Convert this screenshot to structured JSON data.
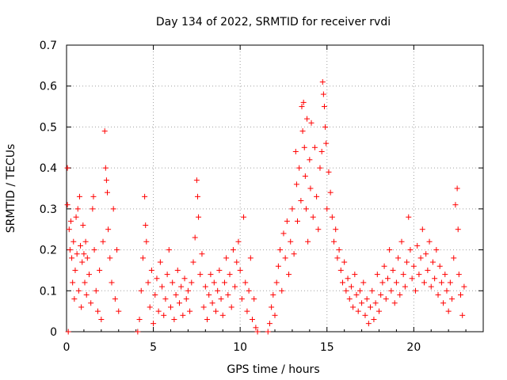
{
  "chart_data": {
    "type": "scatter",
    "title": "Day 134 of 2022, SRMTID for receiver rvdi",
    "xlabel": "GPS time / hours",
    "ylabel": "SRMTID / TECUs",
    "xlim": [
      0,
      24
    ],
    "ylim": [
      0,
      0.7
    ],
    "xticks": [
      0,
      5,
      10,
      15,
      20
    ],
    "xtick_labels": [
      "0",
      "5",
      "10",
      "15",
      "20"
    ],
    "yticks": [
      0,
      0.1,
      0.2,
      0.3,
      0.4,
      0.5,
      0.6,
      0.7
    ],
    "ytick_labels": [
      "0",
      "0.1",
      "0.2",
      "0.3",
      "0.4",
      "0.5",
      "0.6",
      "0.7"
    ],
    "grid": true,
    "marker": "+",
    "marker_color": "#ff0000",
    "series": [
      {
        "name": "SRMTID",
        "points": [
          [
            0.05,
            0.4
          ],
          [
            0.05,
            0.31
          ],
          [
            0.1,
            0.0
          ],
          [
            0.15,
            0.25
          ],
          [
            0.2,
            0.2
          ],
          [
            0.25,
            0.27
          ],
          [
            0.3,
            0.18
          ],
          [
            0.35,
            0.12
          ],
          [
            0.4,
            0.22
          ],
          [
            0.45,
            0.08
          ],
          [
            0.5,
            0.15
          ],
          [
            0.55,
            0.28
          ],
          [
            0.6,
            0.19
          ],
          [
            0.65,
            0.3
          ],
          [
            0.7,
            0.1
          ],
          [
            0.75,
            0.33
          ],
          [
            0.8,
            0.21
          ],
          [
            0.85,
            0.06
          ],
          [
            0.9,
            0.17
          ],
          [
            0.95,
            0.26
          ],
          [
            1.0,
            0.19
          ],
          [
            1.05,
            0.12
          ],
          [
            1.1,
            0.22
          ],
          [
            1.15,
            0.09
          ],
          [
            1.2,
            0.18
          ],
          [
            1.3,
            0.14
          ],
          [
            1.4,
            0.07
          ],
          [
            1.5,
            0.3
          ],
          [
            1.55,
            0.33
          ],
          [
            1.6,
            0.2
          ],
          [
            1.7,
            0.1
          ],
          [
            1.8,
            0.05
          ],
          [
            1.9,
            0.15
          ],
          [
            2.0,
            0.03
          ],
          [
            2.1,
            0.22
          ],
          [
            2.2,
            0.49
          ],
          [
            2.25,
            0.4
          ],
          [
            2.3,
            0.37
          ],
          [
            2.35,
            0.34
          ],
          [
            2.4,
            0.25
          ],
          [
            2.5,
            0.18
          ],
          [
            2.6,
            0.12
          ],
          [
            2.7,
            0.3
          ],
          [
            2.8,
            0.08
          ],
          [
            2.9,
            0.2
          ],
          [
            3.0,
            0.05
          ],
          [
            4.1,
            0.0
          ],
          [
            4.2,
            0.03
          ],
          [
            4.3,
            0.1
          ],
          [
            4.4,
            0.18
          ],
          [
            4.5,
            0.33
          ],
          [
            4.55,
            0.26
          ],
          [
            4.6,
            0.22
          ],
          [
            4.7,
            0.12
          ],
          [
            4.8,
            0.06
          ],
          [
            4.9,
            0.15
          ],
          [
            5.0,
            0.02
          ],
          [
            5.1,
            0.09
          ],
          [
            5.2,
            0.13
          ],
          [
            5.3,
            0.05
          ],
          [
            5.4,
            0.17
          ],
          [
            5.5,
            0.11
          ],
          [
            5.6,
            0.04
          ],
          [
            5.7,
            0.08
          ],
          [
            5.8,
            0.14
          ],
          [
            5.9,
            0.2
          ],
          [
            6.0,
            0.06
          ],
          [
            6.1,
            0.12
          ],
          [
            6.2,
            0.03
          ],
          [
            6.3,
            0.09
          ],
          [
            6.4,
            0.15
          ],
          [
            6.5,
            0.07
          ],
          [
            6.6,
            0.11
          ],
          [
            6.7,
            0.04
          ],
          [
            6.8,
            0.13
          ],
          [
            6.9,
            0.08
          ],
          [
            7.0,
            0.1
          ],
          [
            7.1,
            0.05
          ],
          [
            7.2,
            0.12
          ],
          [
            7.3,
            0.17
          ],
          [
            7.4,
            0.23
          ],
          [
            7.5,
            0.37
          ],
          [
            7.55,
            0.33
          ],
          [
            7.6,
            0.28
          ],
          [
            7.7,
            0.14
          ],
          [
            7.8,
            0.19
          ],
          [
            7.9,
            0.06
          ],
          [
            8.0,
            0.11
          ],
          [
            8.1,
            0.03
          ],
          [
            8.2,
            0.09
          ],
          [
            8.3,
            0.14
          ],
          [
            8.4,
            0.07
          ],
          [
            8.5,
            0.12
          ],
          [
            8.6,
            0.05
          ],
          [
            8.7,
            0.1
          ],
          [
            8.8,
            0.15
          ],
          [
            8.9,
            0.08
          ],
          [
            9.0,
            0.04
          ],
          [
            9.1,
            0.12
          ],
          [
            9.2,
            0.18
          ],
          [
            9.3,
            0.09
          ],
          [
            9.4,
            0.14
          ],
          [
            9.5,
            0.06
          ],
          [
            9.6,
            0.2
          ],
          [
            9.7,
            0.11
          ],
          [
            9.8,
            0.17
          ],
          [
            9.9,
            0.22
          ],
          [
            10.0,
            0.15
          ],
          [
            10.1,
            0.08
          ],
          [
            10.2,
            0.28
          ],
          [
            10.3,
            0.12
          ],
          [
            10.4,
            0.05
          ],
          [
            10.5,
            0.1
          ],
          [
            10.6,
            0.18
          ],
          [
            10.7,
            0.03
          ],
          [
            10.8,
            0.08
          ],
          [
            10.9,
            0.01
          ],
          [
            11.0,
            0.0
          ],
          [
            11.6,
            0.0
          ],
          [
            11.7,
            0.02
          ],
          [
            11.8,
            0.06
          ],
          [
            11.9,
            0.09
          ],
          [
            12.0,
            0.04
          ],
          [
            12.1,
            0.12
          ],
          [
            12.2,
            0.16
          ],
          [
            12.3,
            0.2
          ],
          [
            12.4,
            0.1
          ],
          [
            12.5,
            0.24
          ],
          [
            12.6,
            0.18
          ],
          [
            12.7,
            0.27
          ],
          [
            12.8,
            0.14
          ],
          [
            12.9,
            0.22
          ],
          [
            13.0,
            0.3
          ],
          [
            13.1,
            0.19
          ],
          [
            13.2,
            0.44
          ],
          [
            13.25,
            0.36
          ],
          [
            13.3,
            0.27
          ],
          [
            13.4,
            0.4
          ],
          [
            13.5,
            0.32
          ],
          [
            13.55,
            0.55
          ],
          [
            13.6,
            0.49
          ],
          [
            13.65,
            0.56
          ],
          [
            13.7,
            0.45
          ],
          [
            13.75,
            0.38
          ],
          [
            13.8,
            0.3
          ],
          [
            13.85,
            0.52
          ],
          [
            13.9,
            0.22
          ],
          [
            14.0,
            0.42
          ],
          [
            14.05,
            0.35
          ],
          [
            14.1,
            0.51
          ],
          [
            14.2,
            0.28
          ],
          [
            14.3,
            0.45
          ],
          [
            14.4,
            0.33
          ],
          [
            14.5,
            0.25
          ],
          [
            14.6,
            0.4
          ],
          [
            14.7,
            0.44
          ],
          [
            14.75,
            0.61
          ],
          [
            14.8,
            0.58
          ],
          [
            14.85,
            0.55
          ],
          [
            14.9,
            0.5
          ],
          [
            14.95,
            0.46
          ],
          [
            15.0,
            0.3
          ],
          [
            15.1,
            0.39
          ],
          [
            15.2,
            0.34
          ],
          [
            15.3,
            0.28
          ],
          [
            15.4,
            0.22
          ],
          [
            15.5,
            0.25
          ],
          [
            15.6,
            0.18
          ],
          [
            15.7,
            0.2
          ],
          [
            15.8,
            0.15
          ],
          [
            15.9,
            0.12
          ],
          [
            16.0,
            0.17
          ],
          [
            16.1,
            0.1
          ],
          [
            16.2,
            0.13
          ],
          [
            16.3,
            0.08
          ],
          [
            16.4,
            0.11
          ],
          [
            16.5,
            0.06
          ],
          [
            16.6,
            0.14
          ],
          [
            16.7,
            0.09
          ],
          [
            16.8,
            0.05
          ],
          [
            16.9,
            0.1
          ],
          [
            17.0,
            0.07
          ],
          [
            17.1,
            0.12
          ],
          [
            17.2,
            0.04
          ],
          [
            17.3,
            0.08
          ],
          [
            17.4,
            0.02
          ],
          [
            17.5,
            0.06
          ],
          [
            17.6,
            0.1
          ],
          [
            17.7,
            0.03
          ],
          [
            17.8,
            0.07
          ],
          [
            17.9,
            0.14
          ],
          [
            18.0,
            0.05
          ],
          [
            18.1,
            0.09
          ],
          [
            18.2,
            0.12
          ],
          [
            18.3,
            0.16
          ],
          [
            18.4,
            0.08
          ],
          [
            18.5,
            0.13
          ],
          [
            18.6,
            0.2
          ],
          [
            18.7,
            0.1
          ],
          [
            18.8,
            0.15
          ],
          [
            18.9,
            0.07
          ],
          [
            19.0,
            0.12
          ],
          [
            19.1,
            0.18
          ],
          [
            19.2,
            0.09
          ],
          [
            19.3,
            0.22
          ],
          [
            19.4,
            0.14
          ],
          [
            19.5,
            0.11
          ],
          [
            19.6,
            0.17
          ],
          [
            19.7,
            0.28
          ],
          [
            19.8,
            0.2
          ],
          [
            19.9,
            0.13
          ],
          [
            20.0,
            0.16
          ],
          [
            20.1,
            0.1
          ],
          [
            20.2,
            0.21
          ],
          [
            20.3,
            0.14
          ],
          [
            20.4,
            0.18
          ],
          [
            20.5,
            0.25
          ],
          [
            20.6,
            0.12
          ],
          [
            20.7,
            0.19
          ],
          [
            20.8,
            0.15
          ],
          [
            20.9,
            0.22
          ],
          [
            21.0,
            0.11
          ],
          [
            21.1,
            0.17
          ],
          [
            21.2,
            0.13
          ],
          [
            21.3,
            0.2
          ],
          [
            21.4,
            0.09
          ],
          [
            21.5,
            0.16
          ],
          [
            21.6,
            0.12
          ],
          [
            21.7,
            0.07
          ],
          [
            21.8,
            0.14
          ],
          [
            21.9,
            0.1
          ],
          [
            22.0,
            0.05
          ],
          [
            22.1,
            0.12
          ],
          [
            22.2,
            0.08
          ],
          [
            22.3,
            0.18
          ],
          [
            22.4,
            0.31
          ],
          [
            22.5,
            0.35
          ],
          [
            22.55,
            0.25
          ],
          [
            22.6,
            0.14
          ],
          [
            22.7,
            0.09
          ],
          [
            22.8,
            0.04
          ],
          [
            22.9,
            0.11
          ]
        ]
      }
    ]
  }
}
